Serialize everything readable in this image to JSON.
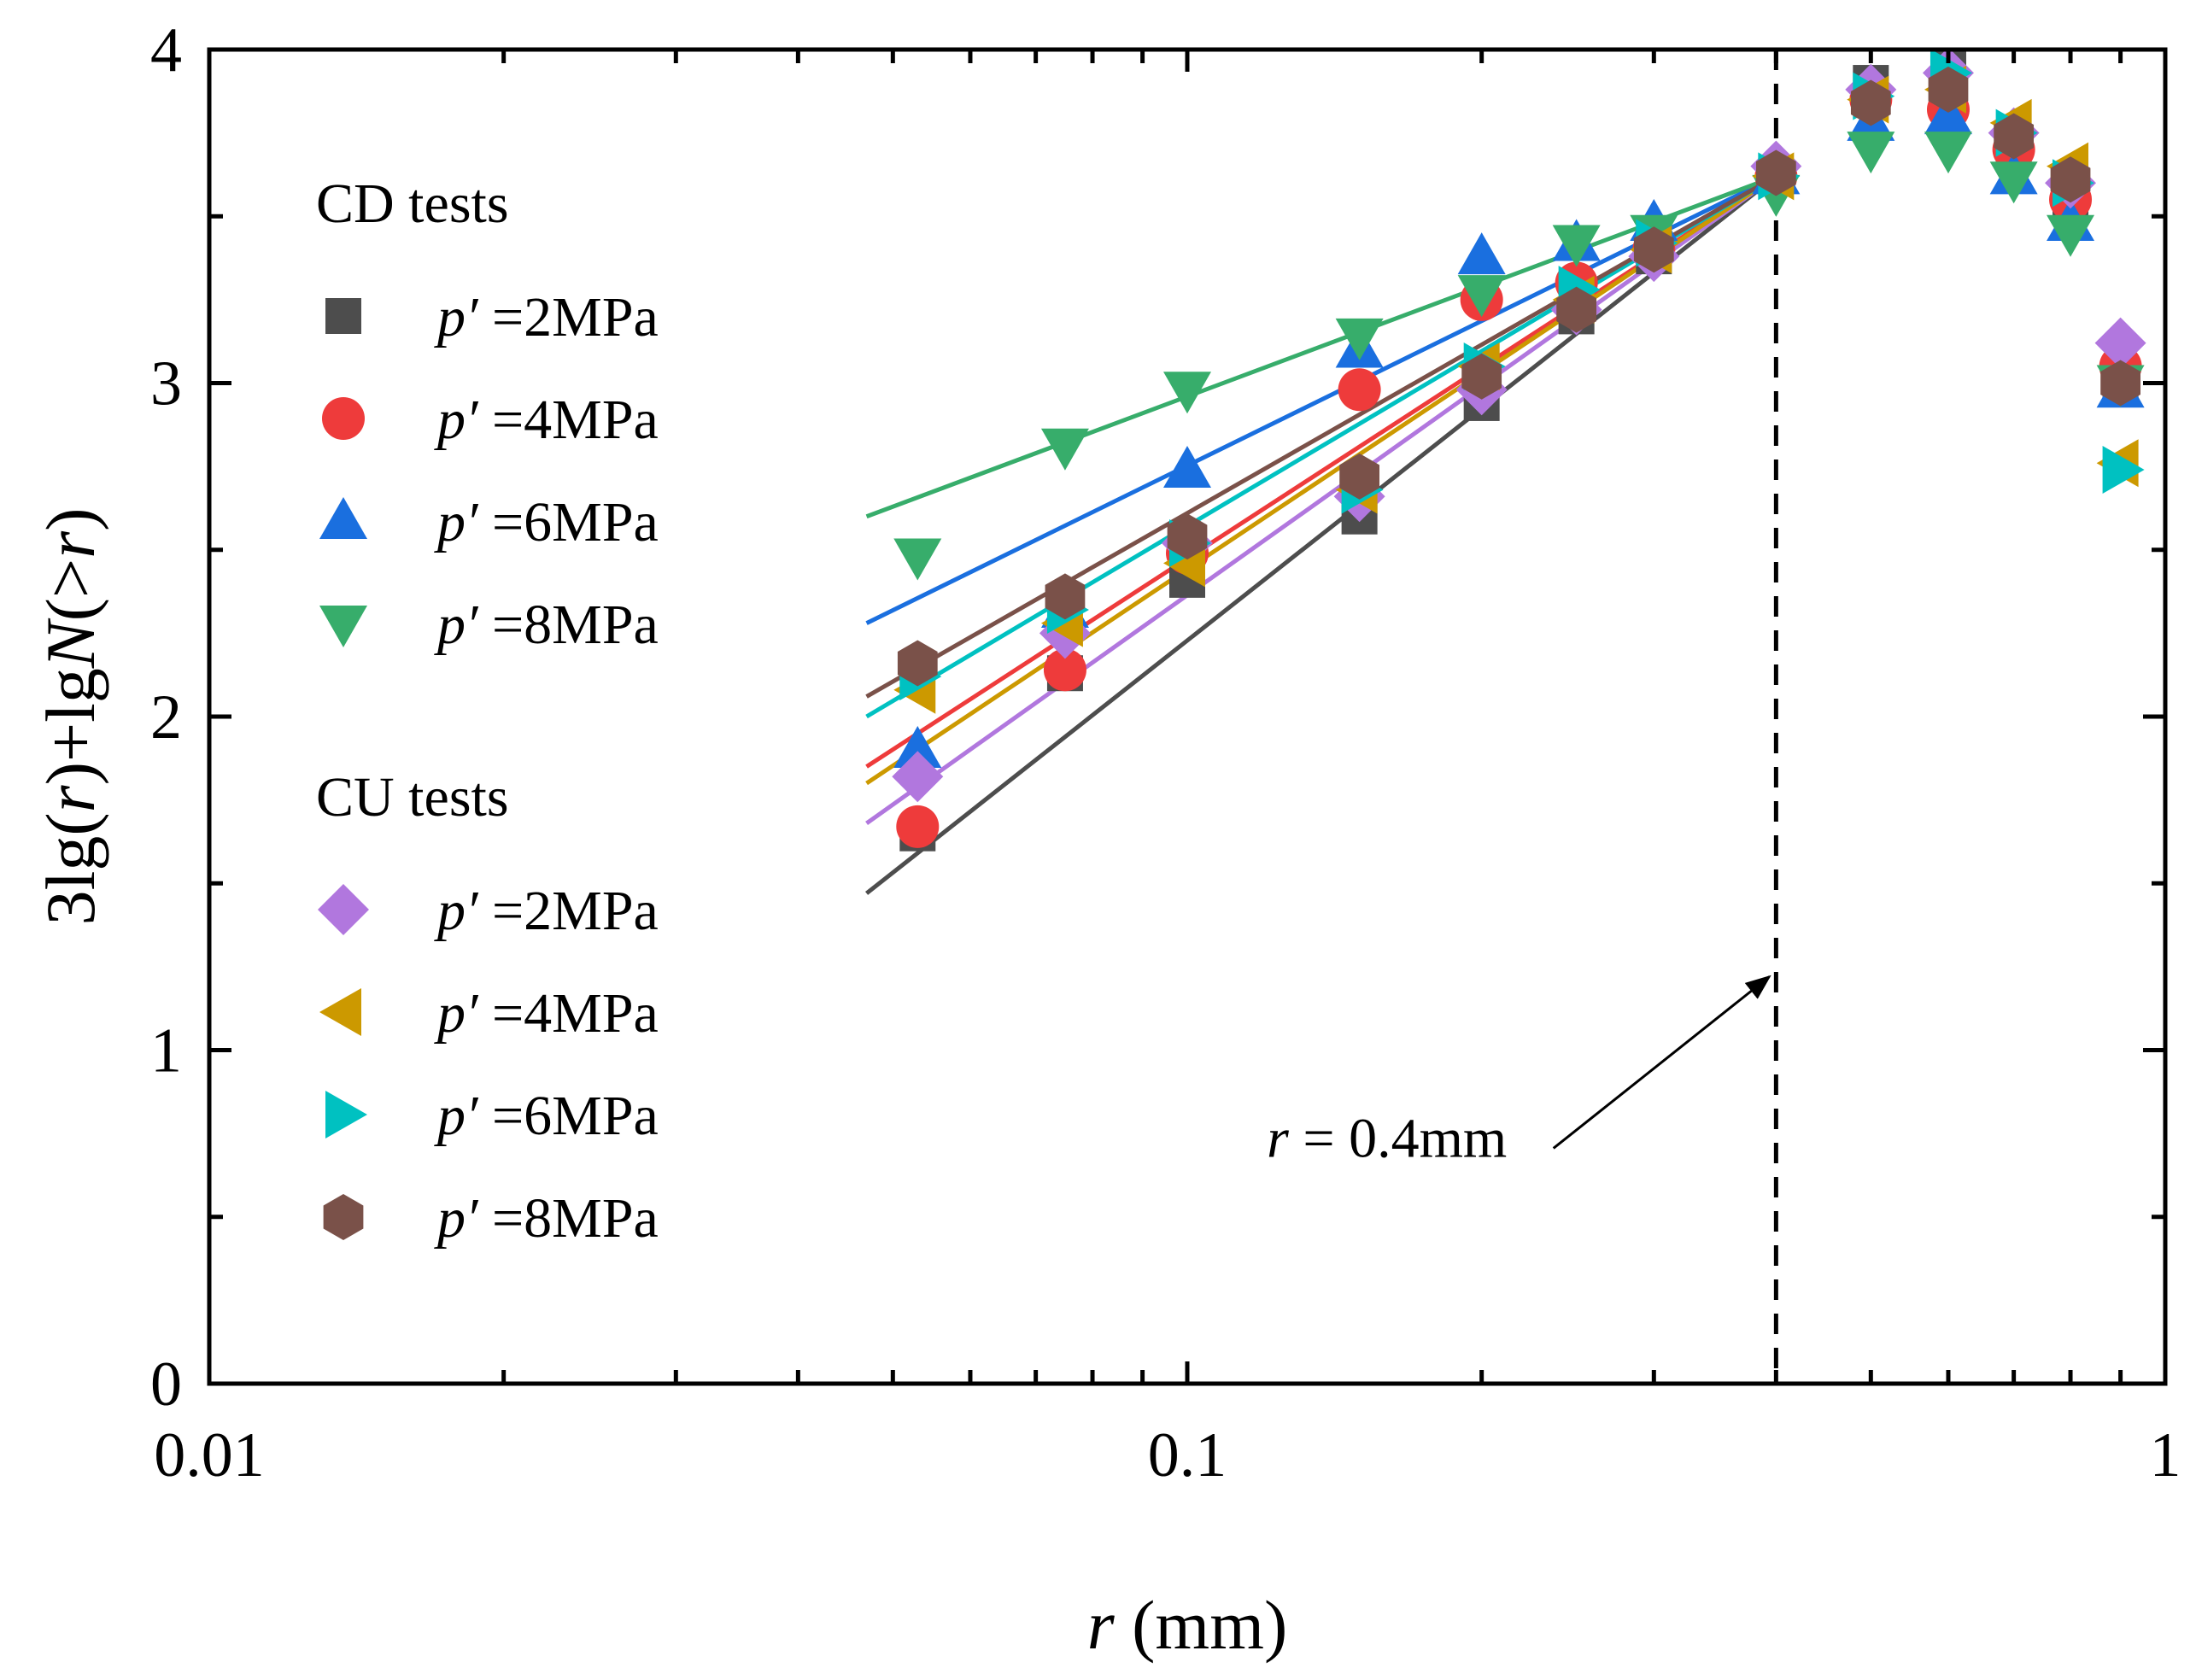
{
  "chart_data": {
    "type": "scatter",
    "x_scale": "log",
    "xlim": [
      0.01,
      1
    ],
    "ylim": [
      0,
      4
    ],
    "x_ticks": [
      "0.01",
      "0.1",
      "1"
    ],
    "y_ticks": [
      "0",
      "1",
      "2",
      "3",
      "4"
    ],
    "xlabel": {
      "italic": "r",
      "rest": " (mm)"
    },
    "ylabel": {
      "p1": "3lg(",
      "i1": "r",
      "p2": ")+lg",
      "i2": "N",
      "p3": "(>",
      "i3": "r",
      "p4": ")"
    },
    "legend": {
      "placement": "upper-left",
      "groups": [
        {
          "title": "CD tests",
          "entries": [
            0,
            1,
            2,
            3
          ]
        },
        {
          "title": "CU tests",
          "entries": [
            4,
            5,
            6,
            7
          ]
        }
      ]
    },
    "series": [
      {
        "group": "CD",
        "p_italic": "p′",
        "p_value": " =2MPa",
        "marker": "square",
        "color": "#4d4d4d",
        "x": [
          0.053,
          0.075,
          0.1,
          0.15,
          0.2,
          0.25,
          0.3,
          0.4,
          0.5,
          0.6,
          0.7,
          0.8,
          0.9
        ],
        "y": [
          1.65,
          2.13,
          2.41,
          2.6,
          2.94,
          3.2,
          3.38,
          3.62,
          3.9,
          3.95,
          3.7,
          3.55,
          3.0
        ],
        "fit": {
          "x": [
            0.047,
            0.4
          ],
          "y": [
            1.47,
            3.62
          ]
        }
      },
      {
        "group": "CD",
        "p_italic": "p′",
        "p_value": " =4MPa",
        "marker": "circle",
        "color": "#ee3b3b",
        "x": [
          0.053,
          0.075,
          0.1,
          0.15,
          0.2,
          0.25,
          0.3,
          0.4,
          0.5,
          0.6,
          0.7,
          0.8,
          0.9
        ],
        "y": [
          1.67,
          2.14,
          2.49,
          2.98,
          3.25,
          3.3,
          3.4,
          3.62,
          3.85,
          3.82,
          3.7,
          3.55,
          3.05
        ],
        "fit": {
          "x": [
            0.047,
            0.4
          ],
          "y": [
            1.85,
            3.62
          ]
        }
      },
      {
        "group": "CD",
        "p_italic": "p′",
        "p_value": " =6MPa",
        "marker": "triangle-up",
        "color": "#1a6fdf",
        "x": [
          0.053,
          0.075,
          0.1,
          0.15,
          0.2,
          0.25,
          0.3,
          0.4,
          0.5,
          0.6,
          0.7,
          0.8,
          0.9
        ],
        "y": [
          1.9,
          2.32,
          2.74,
          3.1,
          3.38,
          3.42,
          3.48,
          3.62,
          3.78,
          3.8,
          3.62,
          3.48,
          2.98
        ],
        "fit": {
          "x": [
            0.047,
            0.4
          ],
          "y": [
            2.28,
            3.62
          ]
        }
      },
      {
        "group": "CD",
        "p_italic": "p′",
        "p_value": " =8MPa",
        "marker": "triangle-down",
        "color": "#37ad6b",
        "x": [
          0.053,
          0.075,
          0.1,
          0.15,
          0.2,
          0.25,
          0.3,
          0.4,
          0.5,
          0.6,
          0.7,
          0.8,
          0.9
        ],
        "y": [
          2.48,
          2.81,
          2.98,
          3.14,
          3.27,
          3.42,
          3.45,
          3.57,
          3.7,
          3.7,
          3.61,
          3.45,
          3.0
        ],
        "fit": {
          "x": [
            0.047,
            0.4
          ],
          "y": [
            2.6,
            3.62
          ]
        }
      },
      {
        "group": "CU",
        "p_italic": "p′",
        "p_value": " =2MPa",
        "marker": "diamond",
        "color": "#b177de",
        "x": [
          0.053,
          0.075,
          0.1,
          0.15,
          0.2,
          0.25,
          0.3,
          0.4,
          0.5,
          0.6,
          0.7,
          0.8,
          0.9
        ],
        "y": [
          1.82,
          2.25,
          2.52,
          2.66,
          2.98,
          3.22,
          3.38,
          3.65,
          3.88,
          3.93,
          3.75,
          3.6,
          3.12
        ],
        "fit": {
          "x": [
            0.047,
            0.4
          ],
          "y": [
            1.68,
            3.62
          ]
        }
      },
      {
        "group": "CU",
        "p_italic": "p′",
        "p_value": " =4MPa",
        "marker": "triangle-left",
        "color": "#cc9900",
        "x": [
          0.053,
          0.075,
          0.1,
          0.15,
          0.2,
          0.25,
          0.3,
          0.4,
          0.5,
          0.6,
          0.7,
          0.8,
          0.9
        ],
        "y": [
          2.08,
          2.28,
          2.46,
          2.68,
          3.05,
          3.25,
          3.4,
          3.62,
          3.85,
          3.88,
          3.78,
          3.65,
          2.76
        ],
        "fit": {
          "x": [
            0.047,
            0.4
          ],
          "y": [
            1.8,
            3.62
          ]
        }
      },
      {
        "group": "CU",
        "p_italic": "p′",
        "p_value": " =6MPa",
        "marker": "triangle-right",
        "color": "#00c1c1",
        "x": [
          0.053,
          0.075,
          0.1,
          0.15,
          0.2,
          0.25,
          0.3,
          0.4,
          0.5,
          0.6,
          0.7,
          0.8,
          0.9
        ],
        "y": [
          2.12,
          2.32,
          2.52,
          2.68,
          3.05,
          3.28,
          3.42,
          3.62,
          3.86,
          3.93,
          3.75,
          3.6,
          2.74
        ],
        "fit": {
          "x": [
            0.047,
            0.4
          ],
          "y": [
            2.0,
            3.62
          ]
        }
      },
      {
        "group": "CU",
        "p_italic": "p′",
        "p_value": " =8MPa",
        "marker": "hexagon",
        "color": "#7a5149",
        "x": [
          0.053,
          0.075,
          0.1,
          0.15,
          0.2,
          0.25,
          0.3,
          0.4,
          0.5,
          0.6,
          0.7,
          0.8,
          0.9
        ],
        "y": [
          2.16,
          2.36,
          2.54,
          2.72,
          3.02,
          3.22,
          3.4,
          3.63,
          3.84,
          3.88,
          3.74,
          3.61,
          3.0
        ],
        "fit": {
          "x": [
            0.047,
            0.4
          ],
          "y": [
            2.06,
            3.62
          ]
        }
      }
    ],
    "reference_line": {
      "x": 0.4,
      "style": "dashed"
    },
    "annotation": {
      "italic": "r",
      "rest": " = 0.4mm",
      "arrow_target": {
        "x": 0.4,
        "y": 1.22
      },
      "text_anchor": {
        "x": 0.16,
        "y": 0.68
      }
    }
  }
}
